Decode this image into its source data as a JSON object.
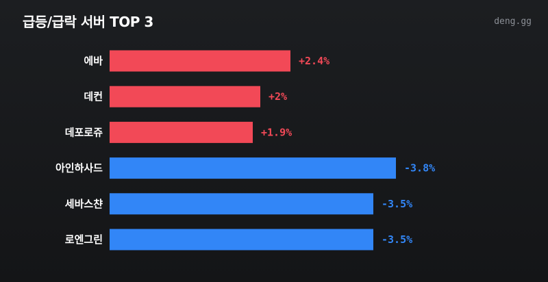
{
  "header": {
    "title": "급등/급락 서버 TOP 3",
    "brand": "deng.gg"
  },
  "colors": {
    "up": "#f24957",
    "down": "#3286f7",
    "background": "#17181b"
  },
  "chart_data": {
    "type": "bar",
    "orientation": "horizontal",
    "title": "급등/급락 서버 TOP 3",
    "categories": [
      "에바",
      "데컨",
      "데포로쥬",
      "아인하사드",
      "세바스챤",
      "로엔그린"
    ],
    "values": [
      2.4,
      2,
      1.9,
      -3.8,
      -3.5,
      -3.5
    ],
    "labels": [
      "+2.4%",
      "+2%",
      "+1.9%",
      "-3.8%",
      "-3.5%",
      "-3.5%"
    ],
    "unit": "%",
    "grid": false,
    "legend": "none"
  }
}
